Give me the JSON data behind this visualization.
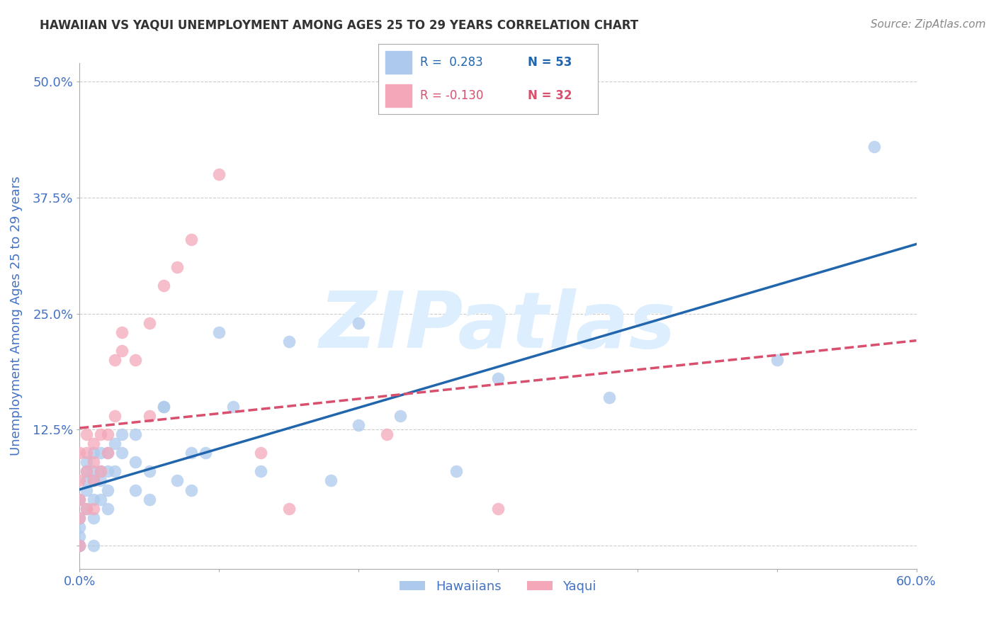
{
  "title": "HAWAIIAN VS YAQUI UNEMPLOYMENT AMONG AGES 25 TO 29 YEARS CORRELATION CHART",
  "source": "Source: ZipAtlas.com",
  "ylabel": "Unemployment Among Ages 25 to 29 years",
  "xlim": [
    0.0,
    0.6
  ],
  "ylim": [
    -0.025,
    0.52
  ],
  "xticks": [
    0.0,
    0.1,
    0.2,
    0.3,
    0.4,
    0.5,
    0.6
  ],
  "xticklabels": [
    "0.0%",
    "",
    "",
    "",
    "",
    "",
    "60.0%"
  ],
  "yticks": [
    0.0,
    0.125,
    0.25,
    0.375,
    0.5
  ],
  "yticklabels": [
    "",
    "12.5%",
    "25.0%",
    "37.5%",
    "50.0%"
  ],
  "hawaiians_R": 0.283,
  "hawaiians_N": 53,
  "yaqui_R": -0.13,
  "yaqui_N": 32,
  "hawaiians_color": "#adc9eb",
  "yaqui_color": "#f4a7b9",
  "hawaiians_line_color": "#2166ac",
  "yaqui_line_color": "#d94f6e",
  "hawaiians_x": [
    0.0,
    0.0,
    0.0,
    0.0,
    0.0,
    0.0,
    0.005,
    0.005,
    0.005,
    0.005,
    0.005,
    0.01,
    0.01,
    0.01,
    0.01,
    0.01,
    0.01,
    0.015,
    0.015,
    0.015,
    0.015,
    0.02,
    0.02,
    0.02,
    0.02,
    0.025,
    0.025,
    0.03,
    0.03,
    0.04,
    0.04,
    0.04,
    0.05,
    0.05,
    0.06,
    0.06,
    0.07,
    0.08,
    0.08,
    0.09,
    0.1,
    0.11,
    0.13,
    0.15,
    0.18,
    0.2,
    0.2,
    0.23,
    0.27,
    0.3,
    0.38,
    0.5,
    0.57
  ],
  "hawaiians_y": [
    0.0,
    0.0,
    0.01,
    0.02,
    0.03,
    0.05,
    0.04,
    0.06,
    0.07,
    0.08,
    0.09,
    0.0,
    0.03,
    0.05,
    0.07,
    0.08,
    0.1,
    0.05,
    0.08,
    0.1,
    0.07,
    0.06,
    0.08,
    0.1,
    0.04,
    0.08,
    0.11,
    0.1,
    0.12,
    0.09,
    0.12,
    0.06,
    0.08,
    0.05,
    0.15,
    0.15,
    0.07,
    0.06,
    0.1,
    0.1,
    0.23,
    0.15,
    0.08,
    0.22,
    0.07,
    0.13,
    0.24,
    0.14,
    0.08,
    0.18,
    0.16,
    0.2,
    0.43
  ],
  "yaqui_x": [
    0.0,
    0.0,
    0.0,
    0.0,
    0.0,
    0.005,
    0.005,
    0.005,
    0.005,
    0.01,
    0.01,
    0.01,
    0.01,
    0.015,
    0.015,
    0.02,
    0.02,
    0.025,
    0.025,
    0.03,
    0.03,
    0.04,
    0.05,
    0.05,
    0.06,
    0.07,
    0.08,
    0.1,
    0.13,
    0.15,
    0.22,
    0.3
  ],
  "yaqui_y": [
    0.0,
    0.03,
    0.05,
    0.07,
    0.1,
    0.04,
    0.08,
    0.1,
    0.12,
    0.04,
    0.07,
    0.09,
    0.11,
    0.08,
    0.12,
    0.1,
    0.12,
    0.14,
    0.2,
    0.21,
    0.23,
    0.2,
    0.14,
    0.24,
    0.28,
    0.3,
    0.33,
    0.4,
    0.1,
    0.04,
    0.12,
    0.04
  ],
  "title_color": "#333333",
  "source_color": "#888888",
  "axis_label_color": "#4472c4",
  "tick_color": "#4472c4",
  "grid_color": "#cccccc",
  "watermark_color": "#ddeeff",
  "legend_r_hawaiians": "R =  0.283",
  "legend_n_hawaiians": "N = 53",
  "legend_r_yaqui": "R = -0.130",
  "legend_n_yaqui": "N = 32",
  "legend_box_color_hawaiians": "#adc9eb",
  "legend_box_color_yaqui": "#f4a7b9"
}
